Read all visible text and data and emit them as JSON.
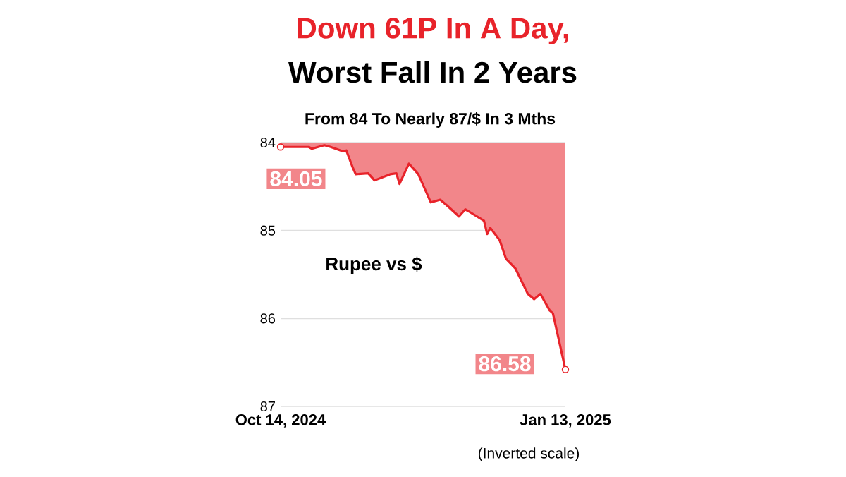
{
  "chart_data": {
    "type": "area",
    "title": "Down 61P In A Day,",
    "subtitle": "Worst Fall In 2 Years",
    "annotations": [
      "From 84 To Nearly 87/$ In 3 Mths",
      "Rupee vs $",
      "(Inverted scale)"
    ],
    "x": [
      "2024-10-14",
      "2024-10-16",
      "2024-10-23",
      "2024-10-24",
      "2024-10-28",
      "2024-10-30",
      "2024-11-03",
      "2024-11-04",
      "2024-11-06",
      "2024-11-07",
      "2024-11-11",
      "2024-11-13",
      "2024-11-18",
      "2024-11-20",
      "2024-11-21",
      "2024-11-24",
      "2024-11-27",
      "2024-11-29",
      "2024-12-01",
      "2024-12-04",
      "2024-12-06",
      "2024-12-10",
      "2024-12-12",
      "2024-12-13",
      "2024-12-18",
      "2024-12-19",
      "2024-12-20",
      "2024-12-23",
      "2024-12-25",
      "2024-12-28",
      "2025-01-01",
      "2025-01-03",
      "2025-01-05",
      "2025-01-08",
      "2025-01-09",
      "2025-01-13"
    ],
    "values": [
      84.05,
      84.05,
      84.05,
      84.07,
      84.03,
      84.05,
      84.1,
      84.09,
      84.28,
      84.36,
      84.35,
      84.43,
      84.36,
      84.35,
      84.47,
      84.24,
      84.36,
      84.52,
      84.68,
      84.65,
      84.71,
      84.84,
      84.76,
      84.78,
      84.89,
      85.04,
      84.97,
      85.11,
      85.32,
      85.43,
      85.72,
      85.78,
      85.72,
      85.91,
      85.94,
      86.58
    ],
    "value_labels": [
      "84.05",
      null,
      null,
      null,
      null,
      null,
      null,
      null,
      null,
      null,
      null,
      null,
      null,
      null,
      null,
      null,
      null,
      null,
      null,
      null,
      null,
      null,
      null,
      null,
      null,
      null,
      null,
      null,
      null,
      null,
      null,
      null,
      null,
      null,
      null,
      "86.58"
    ],
    "color": "#e8232a",
    "xlim": [
      "2024-10-14",
      "2025-01-13"
    ],
    "xticks": [
      {
        "value": "2024-10-14",
        "label": "Oct 14, 2024"
      },
      {
        "value": "2025-01-13",
        "label": "Jan 13, 2025"
      }
    ],
    "ylim": [
      87,
      84
    ],
    "yticks": [
      84,
      85,
      86,
      87
    ],
    "grid": "y"
  }
}
